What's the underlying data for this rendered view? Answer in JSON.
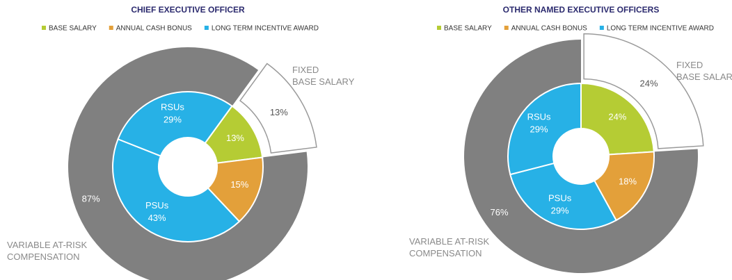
{
  "chart_data": [
    {
      "type": "donut",
      "title": "CHIEF EXECUTIVE OFFICER",
      "legend": [
        {
          "name": "BASE SALARY",
          "color": "#b5cc34"
        },
        {
          "name": "ANNUAL CASH BONUS",
          "color": "#e3a03a"
        },
        {
          "name": "LONG TERM INCENTIVE AWARD",
          "color": "#27b1e6"
        }
      ],
      "inner": {
        "categories": [
          null,
          null,
          "PSUs",
          "RSUs"
        ],
        "values": [
          13,
          15,
          43,
          29
        ],
        "value_labels": [
          "13%",
          "15%",
          "43%",
          "29%"
        ],
        "colors": [
          "#b5cc34",
          "#e3a03a",
          "#27b1e6",
          "#27b1e6"
        ]
      },
      "outer": {
        "categories": [
          [
            "FIXED",
            "BASE SALARY"
          ],
          [
            "VARIABLE AT-RISK",
            "COMPENSATION"
          ]
        ],
        "values": [
          13,
          87
        ],
        "value_labels": [
          "13%",
          "87%"
        ],
        "colors": [
          "#ffffff",
          "#808080"
        ]
      }
    },
    {
      "type": "donut",
      "title": "OTHER NAMED EXECUTIVE OFFICERS",
      "legend": [
        {
          "name": "BASE SALARY",
          "color": "#b5cc34"
        },
        {
          "name": "ANNUAL CASH BONUS",
          "color": "#e3a03a"
        },
        {
          "name": "LONG TERM INCENTIVE AWARD",
          "color": "#27b1e6"
        }
      ],
      "inner": {
        "categories": [
          null,
          null,
          "PSUs",
          "RSUs"
        ],
        "values": [
          24,
          18,
          29,
          29
        ],
        "value_labels": [
          "24%",
          "18%",
          "29%",
          "29%"
        ],
        "colors": [
          "#b5cc34",
          "#e3a03a",
          "#27b1e6",
          "#27b1e6"
        ]
      },
      "outer": {
        "categories": [
          [
            "FIXED",
            "BASE SALARY"
          ],
          [
            "VARIABLE AT-RISK",
            "COMPENSATION"
          ]
        ],
        "values": [
          24,
          76
        ],
        "value_labels": [
          "24%",
          "76%"
        ],
        "colors": [
          "#ffffff",
          "#808080"
        ]
      }
    }
  ]
}
